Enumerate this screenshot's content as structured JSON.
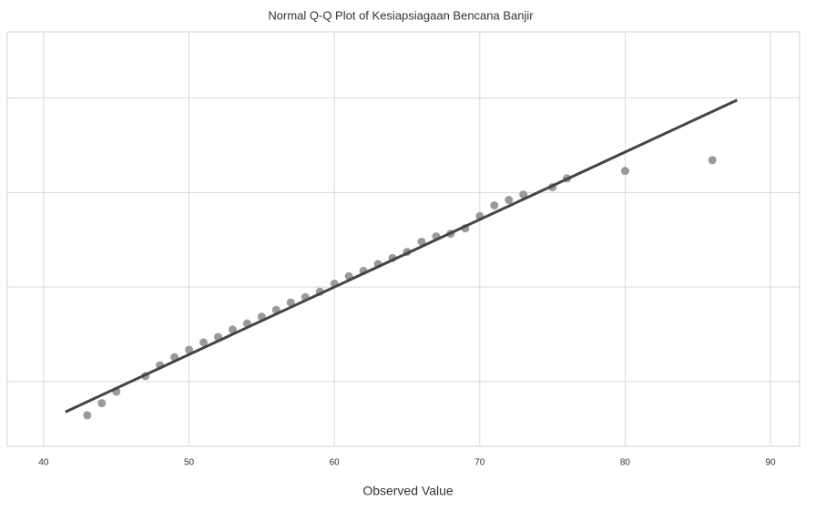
{
  "chart_data": {
    "type": "scatter",
    "title": "Normal Q-Q Plot of Kesiapsiagaan Bencana Banjir",
    "x_label": "Observed Value",
    "x": [
      43,
      44,
      45,
      47,
      48,
      49,
      50,
      51,
      52,
      53,
      54,
      55,
      56,
      57,
      58,
      59,
      60,
      61,
      62,
      63,
      64,
      65,
      66,
      67,
      68,
      69,
      70,
      71,
      72,
      73,
      75,
      76,
      80,
      86
    ],
    "values": [
      41.0,
      42.8,
      44.5,
      46.8,
      48.4,
      49.6,
      50.7,
      51.8,
      52.6,
      53.7,
      54.6,
      55.6,
      56.6,
      57.7,
      58.5,
      59.3,
      60.5,
      61.6,
      62.4,
      63.4,
      64.3,
      65.2,
      66.7,
      67.5,
      67.9,
      68.7,
      70.5,
      72.1,
      72.9,
      73.7,
      74.8,
      76.1,
      77.2,
      78.8
    ],
    "color": "#9a9a9a",
    "reference_line": {
      "x": [
        41.5,
        87.7
      ],
      "values": [
        41.5,
        87.7
      ],
      "color": "#444444"
    },
    "xlim": [
      37.5,
      92.0
    ],
    "xticks": [
      40,
      50,
      60,
      70,
      80,
      90
    ],
    "ylim": [
      36.4,
      97.8
    ],
    "yticks": [
      46,
      60,
      74,
      88
    ],
    "grid": true
  }
}
